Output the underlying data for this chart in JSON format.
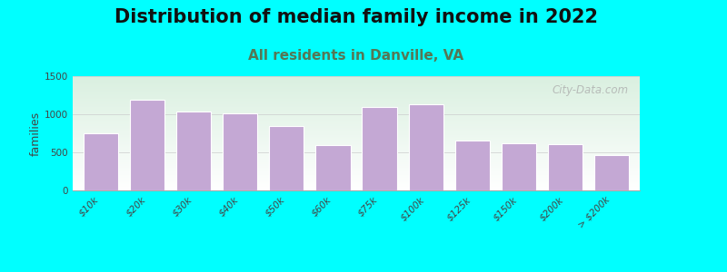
{
  "title": "Distribution of median family income in 2022",
  "subtitle": "All residents in Danville, VA",
  "categories": [
    "$10k",
    "$20k",
    "$30k",
    "$40k",
    "$50k",
    "$60k",
    "$75k",
    "$100k",
    "$125k",
    "$150k",
    "$200k",
    "> $200k"
  ],
  "values": [
    755,
    1190,
    1030,
    1015,
    850,
    590,
    1090,
    1130,
    650,
    615,
    610,
    460
  ],
  "bar_color": "#c4a8d4",
  "bar_edge_color": "#ffffff",
  "background_color": "#00ffff",
  "plot_bg_top_left": "#daf0e0",
  "plot_bg_right": "#eaf5ee",
  "plot_bg_bottom": "#ffffff",
  "title_color": "#111111",
  "subtitle_color": "#557755",
  "ylabel": "families",
  "ylim": [
    0,
    1500
  ],
  "yticks": [
    0,
    500,
    1000,
    1500
  ],
  "watermark": "City-Data.com",
  "title_fontsize": 15,
  "subtitle_fontsize": 11,
  "label_fontsize": 7.5,
  "bar_width": 0.75
}
